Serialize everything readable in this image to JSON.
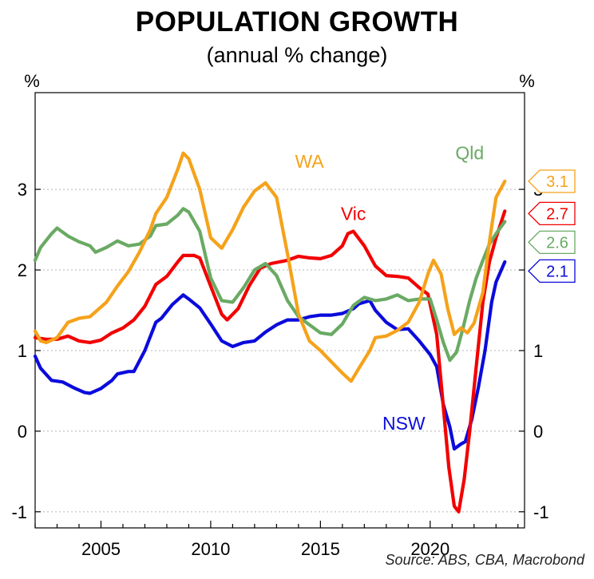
{
  "chart_data": {
    "type": "line",
    "title": "POPULATION GROWTH",
    "subtitle": "(annual % change)",
    "source": "Source: ABS, CBA, Macrobond",
    "left_unit": "%",
    "right_unit": "%",
    "x_ticks": [
      "2005",
      "2010",
      "2015",
      "2020"
    ],
    "y_ticks": [
      "-1",
      "0",
      "1",
      "2",
      "3"
    ],
    "xlim": [
      2002.0,
      2024.3
    ],
    "ylim": [
      -1.2,
      4.2
    ],
    "grid": "horizontal dotted",
    "series": [
      {
        "name": "NSW",
        "color": "#0b0bdc",
        "end_label": "2.1",
        "points": [
          [
            2002.0,
            0.93
          ],
          [
            2002.25,
            0.78
          ],
          [
            2002.75,
            0.63
          ],
          [
            2003.25,
            0.61
          ],
          [
            2003.75,
            0.54
          ],
          [
            2004.25,
            0.48
          ],
          [
            2004.5,
            0.47
          ],
          [
            2005.0,
            0.53
          ],
          [
            2005.5,
            0.63
          ],
          [
            2005.75,
            0.71
          ],
          [
            2006.25,
            0.74
          ],
          [
            2006.5,
            0.74
          ],
          [
            2007.0,
            1.0
          ],
          [
            2007.5,
            1.35
          ],
          [
            2007.75,
            1.4
          ],
          [
            2008.25,
            1.57
          ],
          [
            2008.75,
            1.69
          ],
          [
            2009.0,
            1.64
          ],
          [
            2009.5,
            1.53
          ],
          [
            2010.0,
            1.33
          ],
          [
            2010.5,
            1.12
          ],
          [
            2011.0,
            1.05
          ],
          [
            2011.5,
            1.1
          ],
          [
            2012.0,
            1.12
          ],
          [
            2012.5,
            1.23
          ],
          [
            2013.0,
            1.32
          ],
          [
            2013.5,
            1.38
          ],
          [
            2014.0,
            1.38
          ],
          [
            2014.5,
            1.42
          ],
          [
            2015.0,
            1.44
          ],
          [
            2015.5,
            1.44
          ],
          [
            2016.0,
            1.46
          ],
          [
            2016.5,
            1.52
          ],
          [
            2016.75,
            1.58
          ],
          [
            2017.25,
            1.62
          ],
          [
            2017.5,
            1.5
          ],
          [
            2018.0,
            1.35
          ],
          [
            2018.5,
            1.26
          ],
          [
            2019.0,
            1.27
          ],
          [
            2019.5,
            1.12
          ],
          [
            2020.0,
            0.95
          ],
          [
            2020.3,
            0.8
          ],
          [
            2020.6,
            0.33
          ],
          [
            2020.9,
            0.05
          ],
          [
            2021.1,
            -0.22
          ],
          [
            2021.4,
            -0.16
          ],
          [
            2021.6,
            -0.13
          ],
          [
            2021.9,
            0.15
          ],
          [
            2022.2,
            0.55
          ],
          [
            2022.5,
            1.0
          ],
          [
            2022.8,
            1.6
          ],
          [
            2023.0,
            1.85
          ],
          [
            2023.4,
            2.1
          ]
        ]
      },
      {
        "name": "Vic",
        "color": "#f20000",
        "end_label": "2.7",
        "points": [
          [
            2002.0,
            1.16
          ],
          [
            2002.5,
            1.14
          ],
          [
            2003.0,
            1.14
          ],
          [
            2003.5,
            1.18
          ],
          [
            2004.0,
            1.12
          ],
          [
            2004.5,
            1.1
          ],
          [
            2005.0,
            1.13
          ],
          [
            2005.5,
            1.22
          ],
          [
            2006.0,
            1.28
          ],
          [
            2006.5,
            1.38
          ],
          [
            2007.0,
            1.55
          ],
          [
            2007.5,
            1.82
          ],
          [
            2008.0,
            1.92
          ],
          [
            2008.5,
            2.1
          ],
          [
            2008.75,
            2.18
          ],
          [
            2009.25,
            2.18
          ],
          [
            2009.5,
            2.15
          ],
          [
            2010.0,
            1.8
          ],
          [
            2010.5,
            1.45
          ],
          [
            2010.75,
            1.38
          ],
          [
            2011.25,
            1.52
          ],
          [
            2011.75,
            1.8
          ],
          [
            2012.25,
            2.02
          ],
          [
            2012.75,
            2.08
          ],
          [
            2013.5,
            2.12
          ],
          [
            2014.0,
            2.17
          ],
          [
            2014.5,
            2.15
          ],
          [
            2015.0,
            2.14
          ],
          [
            2015.5,
            2.18
          ],
          [
            2016.0,
            2.3
          ],
          [
            2016.25,
            2.45
          ],
          [
            2016.5,
            2.48
          ],
          [
            2017.0,
            2.3
          ],
          [
            2017.5,
            2.05
          ],
          [
            2018.0,
            1.93
          ],
          [
            2018.5,
            1.92
          ],
          [
            2019.0,
            1.9
          ],
          [
            2019.5,
            1.78
          ],
          [
            2019.9,
            1.7
          ],
          [
            2020.3,
            1.2
          ],
          [
            2020.6,
            0.3
          ],
          [
            2020.85,
            -0.45
          ],
          [
            2021.1,
            -0.93
          ],
          [
            2021.3,
            -1.0
          ],
          [
            2021.55,
            -0.6
          ],
          [
            2021.8,
            0.0
          ],
          [
            2022.1,
            0.8
          ],
          [
            2022.4,
            1.6
          ],
          [
            2022.7,
            2.1
          ],
          [
            2023.0,
            2.4
          ],
          [
            2023.4,
            2.73
          ]
        ]
      },
      {
        "name": "Qld",
        "color": "#6aaa64",
        "end_label": "2.6",
        "points": [
          [
            2002.0,
            2.12
          ],
          [
            2002.25,
            2.28
          ],
          [
            2002.75,
            2.45
          ],
          [
            2003.0,
            2.52
          ],
          [
            2003.5,
            2.42
          ],
          [
            2004.0,
            2.35
          ],
          [
            2004.5,
            2.3
          ],
          [
            2004.75,
            2.22
          ],
          [
            2005.25,
            2.28
          ],
          [
            2005.75,
            2.36
          ],
          [
            2006.25,
            2.3
          ],
          [
            2006.75,
            2.32
          ],
          [
            2007.25,
            2.42
          ],
          [
            2007.5,
            2.55
          ],
          [
            2008.0,
            2.57
          ],
          [
            2008.5,
            2.68
          ],
          [
            2008.75,
            2.76
          ],
          [
            2009.0,
            2.72
          ],
          [
            2009.5,
            2.48
          ],
          [
            2010.0,
            1.9
          ],
          [
            2010.5,
            1.62
          ],
          [
            2011.0,
            1.6
          ],
          [
            2011.5,
            1.78
          ],
          [
            2012.0,
            2.0
          ],
          [
            2012.5,
            2.08
          ],
          [
            2013.0,
            1.93
          ],
          [
            2013.5,
            1.62
          ],
          [
            2014.0,
            1.42
          ],
          [
            2014.5,
            1.32
          ],
          [
            2015.0,
            1.22
          ],
          [
            2015.5,
            1.2
          ],
          [
            2016.0,
            1.33
          ],
          [
            2016.5,
            1.56
          ],
          [
            2017.0,
            1.66
          ],
          [
            2017.5,
            1.62
          ],
          [
            2018.0,
            1.64
          ],
          [
            2018.5,
            1.69
          ],
          [
            2019.0,
            1.62
          ],
          [
            2019.5,
            1.64
          ],
          [
            2020.0,
            1.64
          ],
          [
            2020.3,
            1.38
          ],
          [
            2020.6,
            1.1
          ],
          [
            2020.9,
            0.88
          ],
          [
            2021.2,
            0.98
          ],
          [
            2021.5,
            1.28
          ],
          [
            2021.8,
            1.62
          ],
          [
            2022.1,
            1.9
          ],
          [
            2022.4,
            2.12
          ],
          [
            2022.7,
            2.32
          ],
          [
            2023.0,
            2.45
          ],
          [
            2023.4,
            2.6
          ]
        ]
      },
      {
        "name": "WA",
        "color": "#f5a21b",
        "end_label": "3.1",
        "points": [
          [
            2002.0,
            1.24
          ],
          [
            2002.25,
            1.12
          ],
          [
            2002.5,
            1.1
          ],
          [
            2003.0,
            1.16
          ],
          [
            2003.5,
            1.35
          ],
          [
            2004.0,
            1.4
          ],
          [
            2004.5,
            1.42
          ],
          [
            2004.75,
            1.48
          ],
          [
            2005.25,
            1.6
          ],
          [
            2005.75,
            1.8
          ],
          [
            2006.25,
            1.98
          ],
          [
            2006.75,
            2.22
          ],
          [
            2007.25,
            2.5
          ],
          [
            2007.5,
            2.7
          ],
          [
            2008.0,
            2.9
          ],
          [
            2008.5,
            3.25
          ],
          [
            2008.75,
            3.45
          ],
          [
            2009.0,
            3.38
          ],
          [
            2009.5,
            3.0
          ],
          [
            2010.0,
            2.4
          ],
          [
            2010.5,
            2.27
          ],
          [
            2011.0,
            2.5
          ],
          [
            2011.5,
            2.78
          ],
          [
            2012.0,
            2.98
          ],
          [
            2012.5,
            3.08
          ],
          [
            2013.0,
            2.9
          ],
          [
            2013.5,
            2.2
          ],
          [
            2014.0,
            1.45
          ],
          [
            2014.5,
            1.12
          ],
          [
            2015.0,
            1.0
          ],
          [
            2015.5,
            0.86
          ],
          [
            2016.0,
            0.72
          ],
          [
            2016.4,
            0.62
          ],
          [
            2016.75,
            0.78
          ],
          [
            2017.25,
            1.0
          ],
          [
            2017.5,
            1.16
          ],
          [
            2018.0,
            1.18
          ],
          [
            2018.5,
            1.25
          ],
          [
            2019.0,
            1.35
          ],
          [
            2019.5,
            1.6
          ],
          [
            2019.9,
            1.95
          ],
          [
            2020.15,
            2.12
          ],
          [
            2020.5,
            1.95
          ],
          [
            2020.8,
            1.52
          ],
          [
            2021.1,
            1.2
          ],
          [
            2021.4,
            1.28
          ],
          [
            2021.7,
            1.22
          ],
          [
            2022.0,
            1.34
          ],
          [
            2022.4,
            1.72
          ],
          [
            2022.7,
            2.35
          ],
          [
            2023.0,
            2.9
          ],
          [
            2023.4,
            3.1
          ]
        ]
      }
    ],
    "annotations": [
      {
        "text": "WA",
        "series": "WA",
        "x": 2014.5,
        "y": 3.35
      },
      {
        "text": "Qld",
        "series": "Qld",
        "x": 2021.8,
        "y": 3.45
      },
      {
        "text": "Vic",
        "series": "Vic",
        "x": 2016.5,
        "y": 2.7
      },
      {
        "text": "NSW",
        "series": "NSW",
        "x": 2018.8,
        "y": 0.1
      }
    ]
  }
}
